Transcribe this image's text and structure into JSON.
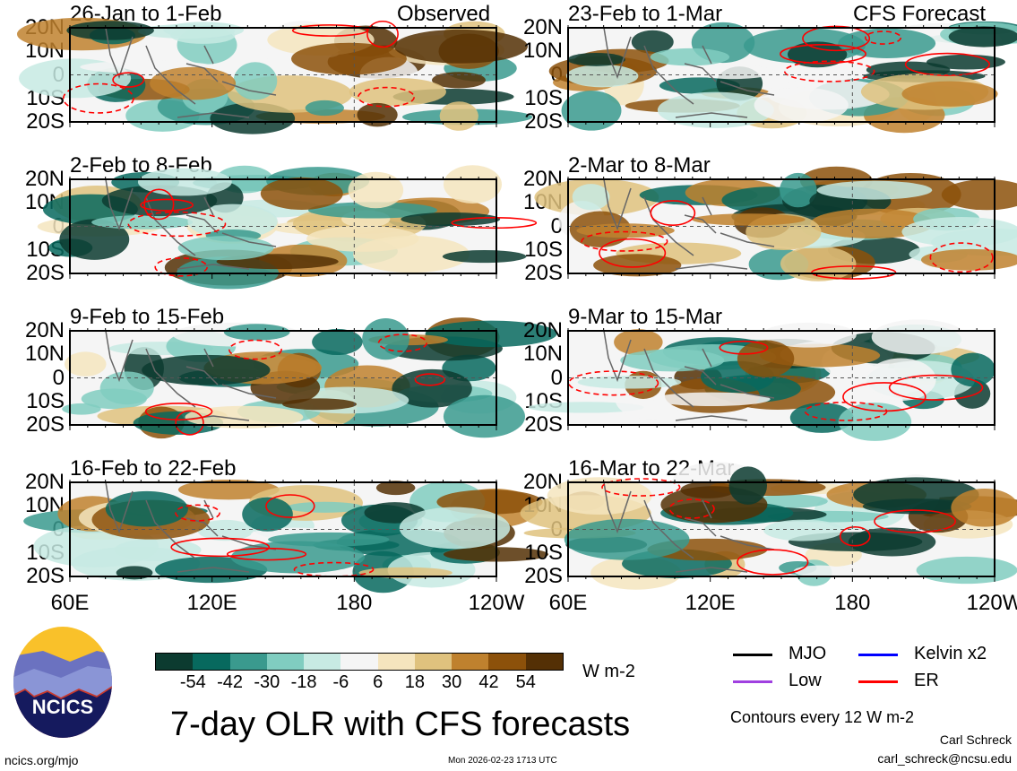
{
  "left_header": "Observed",
  "right_header": "CFS Forecast",
  "panels_left": [
    {
      "title": "26-Jan to 1-Feb"
    },
    {
      "title": "2-Feb to 8-Feb"
    },
    {
      "title": "9-Feb to 15-Feb"
    },
    {
      "title": "16-Feb to 22-Feb"
    }
  ],
  "panels_right": [
    {
      "title": "23-Feb to 1-Mar"
    },
    {
      "title": "2-Mar to 8-Mar"
    },
    {
      "title": "9-Mar to 15-Mar"
    },
    {
      "title": "16-Mar to 22-Mar"
    }
  ],
  "lat_labels": [
    "20N",
    "10N",
    "0",
    "10S",
    "20S"
  ],
  "lon_labels": [
    "60E",
    "120E",
    "180",
    "120W"
  ],
  "colorbar": {
    "colors": [
      "#0c3b30",
      "#07695e",
      "#3a9a8e",
      "#80cdc0",
      "#c7eae3",
      "#f5f5f5",
      "#f5e5be",
      "#dfc27e",
      "#bf812e",
      "#8c510a",
      "#543005"
    ],
    "labels": [
      "-54",
      "-42",
      "-30",
      "-18",
      "-6",
      "6",
      "18",
      "30",
      "42",
      "54"
    ],
    "unit": "W m-2"
  },
  "legend": [
    {
      "label": "MJO",
      "color": "#000000"
    },
    {
      "label": "Kelvin x2",
      "color": "#0000ff"
    },
    {
      "label": "Low",
      "color": "#a040e0"
    },
    {
      "label": "ER",
      "color": "#ff0000"
    }
  ],
  "contour_note": "Contours every 12 W m-2",
  "title": "7-day OLR with CFS forecasts",
  "logo_text": "NCICS",
  "footer_left": "ncics.org/mjo",
  "footer_center": "Mon 2026-02-23 1713 UTC",
  "author": "Carl Schreck",
  "email": "carl_schreck@ncsu.edu"
}
